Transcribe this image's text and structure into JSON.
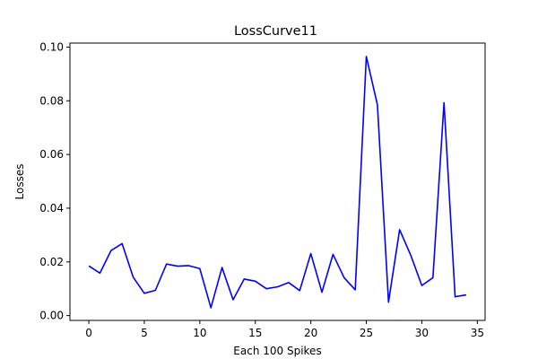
{
  "chart_data": {
    "type": "line",
    "title": "LossCurve11",
    "xlabel": "Each 100 Spikes",
    "ylabel": "Losses",
    "xlim": [
      -1.7,
      35.7
    ],
    "ylim": [
      -0.0018,
      0.1015
    ],
    "x_ticks": [
      0,
      5,
      10,
      15,
      20,
      25,
      30,
      35
    ],
    "x_tick_labels": [
      "0",
      "5",
      "10",
      "15",
      "20",
      "25",
      "30",
      "35"
    ],
    "y_ticks": [
      0.0,
      0.02,
      0.04,
      0.06,
      0.08,
      0.1
    ],
    "y_tick_labels": [
      "0.00",
      "0.02",
      "0.04",
      "0.06",
      "0.08",
      "0.10"
    ],
    "grid": false,
    "series": [
      {
        "color": "#0000ff",
        "x": [
          0,
          1,
          2,
          3,
          4,
          5,
          6,
          7,
          8,
          9,
          10,
          11,
          12,
          13,
          14,
          15,
          16,
          17,
          18,
          19,
          20,
          21,
          22,
          23,
          24,
          25,
          26,
          27,
          28,
          29,
          30,
          31,
          32,
          33,
          34
        ],
        "y": [
          0.0185,
          0.0158,
          0.0242,
          0.0268,
          0.0143,
          0.0083,
          0.0094,
          0.0192,
          0.0184,
          0.0186,
          0.0175,
          0.0029,
          0.0179,
          0.0059,
          0.0136,
          0.0128,
          0.01,
          0.0107,
          0.0123,
          0.0093,
          0.0231,
          0.0087,
          0.0228,
          0.0141,
          0.0096,
          0.0965,
          0.0785,
          0.005,
          0.032,
          0.0225,
          0.0112,
          0.0141,
          0.0793,
          0.007,
          0.0077
        ]
      }
    ]
  }
}
